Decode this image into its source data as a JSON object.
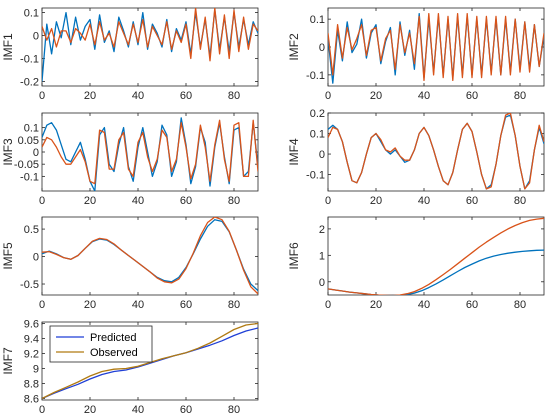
{
  "colors": {
    "predicted_imf": "#0072BD",
    "observed_imf": "#D95319",
    "predicted_last": "#1F3FD6",
    "observed_last": "#B07A12"
  },
  "chart_data": [
    {
      "type": "line",
      "ylabel": "IMF1",
      "xlim": [
        0,
        90
      ],
      "ylim": [
        -0.22,
        0.12
      ],
      "xticks": [
        0,
        20,
        40,
        60,
        80
      ],
      "yticks": [
        -0.2,
        -0.1,
        0,
        0.1
      ],
      "ytick_labels": [
        "-0.2",
        "-0.1",
        "0",
        "0.1"
      ],
      "x": [
        0,
        2,
        4,
        6,
        8,
        10,
        12,
        14,
        16,
        18,
        20,
        22,
        24,
        26,
        28,
        30,
        32,
        34,
        36,
        38,
        40,
        42,
        44,
        46,
        48,
        50,
        52,
        54,
        56,
        58,
        60,
        62,
        64,
        66,
        68,
        70,
        72,
        74,
        76,
        78,
        80,
        82,
        84,
        86,
        88,
        90
      ],
      "series": [
        {
          "name": "Predicted",
          "color": "#0072BD",
          "values": [
            -0.2,
            0.05,
            -0.08,
            0.06,
            -0.01,
            0.1,
            -0.04,
            0.08,
            -0.02,
            0.04,
            0.07,
            -0.06,
            0.09,
            -0.03,
            0.02,
            -0.07,
            0.08,
            0.02,
            -0.05,
            0.06,
            -0.04,
            0.1,
            -0.06,
            0.05,
            0.01,
            -0.05,
            0.07,
            -0.07,
            0.03,
            -0.02,
            0.06,
            -0.08,
            0.1,
            -0.05,
            0.07,
            -0.09,
            0.11,
            -0.06,
            0.08,
            -0.07,
            0.1,
            -0.05,
            0.07,
            -0.04,
            0.06,
            0.01
          ]
        },
        {
          "name": "Observed",
          "color": "#D95319",
          "values": [
            0.04,
            -0.02,
            0.03,
            -0.05,
            0.02,
            0.02,
            -0.03,
            0.03,
            0.01,
            -0.02,
            0.05,
            -0.04,
            0.06,
            -0.02,
            0.01,
            -0.05,
            0.06,
            0.01,
            -0.04,
            0.05,
            -0.03,
            0.07,
            -0.05,
            0.04,
            0,
            -0.04,
            0.06,
            -0.06,
            0.02,
            -0.03,
            0.05,
            -0.1,
            0.12,
            -0.06,
            0.08,
            -0.11,
            0.12,
            -0.08,
            0.09,
            -0.1,
            0.11,
            -0.07,
            0.08,
            -0.06,
            0.05,
            0.02
          ]
        }
      ]
    },
    {
      "type": "line",
      "ylabel": "IMF2",
      "xlim": [
        0,
        90
      ],
      "ylim": [
        -0.14,
        0.14
      ],
      "xticks": [
        0,
        20,
        40,
        60,
        80
      ],
      "yticks": [
        -0.1,
        0,
        0.1
      ],
      "ytick_labels": [
        "-0.1",
        "0",
        "0.1"
      ],
      "x": [
        0,
        2,
        4,
        6,
        8,
        10,
        12,
        14,
        16,
        18,
        20,
        22,
        24,
        26,
        28,
        30,
        32,
        34,
        36,
        38,
        40,
        42,
        44,
        46,
        48,
        50,
        52,
        54,
        56,
        58,
        60,
        62,
        64,
        66,
        68,
        70,
        72,
        74,
        76,
        78,
        80,
        82,
        84,
        86,
        88,
        90
      ],
      "series": [
        {
          "name": "Predicted",
          "color": "#0072BD",
          "values": [
            0.03,
            -0.13,
            0.06,
            -0.05,
            0.09,
            -0.02,
            0.01,
            0.1,
            -0.04,
            0.05,
            0.08,
            -0.06,
            0.02,
            0.07,
            -0.1,
            0.09,
            -0.03,
            0.06,
            -0.08,
            0.12,
            -0.11,
            0.1,
            -0.09,
            0.11,
            -0.1,
            0.1,
            -0.11,
            0.11,
            -0.1,
            0.11,
            -0.1,
            0.1,
            -0.1,
            0.1,
            -0.09,
            0.1,
            -0.1,
            0.1,
            -0.09,
            0.1,
            -0.08,
            0.09,
            -0.08,
            0.08,
            -0.07,
            0.04
          ]
        },
        {
          "name": "Observed",
          "color": "#D95319",
          "values": [
            0.05,
            -0.1,
            0.08,
            -0.04,
            0.07,
            -0.01,
            0.03,
            0.08,
            -0.03,
            0.06,
            0.07,
            -0.05,
            0.03,
            0.06,
            -0.08,
            0.08,
            -0.02,
            0.05,
            -0.06,
            0.11,
            -0.12,
            0.12,
            -0.1,
            0.12,
            -0.11,
            0.11,
            -0.12,
            0.12,
            -0.11,
            0.12,
            -0.11,
            0.11,
            -0.11,
            0.11,
            -0.1,
            0.11,
            -0.1,
            0.11,
            -0.1,
            0.1,
            -0.09,
            0.09,
            -0.09,
            0.08,
            -0.07,
            0.05
          ]
        }
      ]
    },
    {
      "type": "line",
      "ylabel": "IMF3",
      "xlim": [
        0,
        90
      ],
      "ylim": [
        -0.16,
        0.16
      ],
      "xticks": [
        0,
        20,
        40,
        60,
        80
      ],
      "yticks": [
        -0.1,
        -0.05,
        0,
        0.05,
        0.1
      ],
      "ytick_labels": [
        "-0.1",
        "-0.05",
        "0",
        "0.05",
        "0.1"
      ],
      "x": [
        0,
        2,
        4,
        6,
        8,
        10,
        12,
        14,
        16,
        18,
        20,
        22,
        24,
        26,
        28,
        30,
        32,
        34,
        36,
        38,
        40,
        42,
        44,
        46,
        48,
        50,
        52,
        54,
        56,
        58,
        60,
        62,
        64,
        66,
        68,
        70,
        72,
        74,
        76,
        78,
        80,
        82,
        84,
        86,
        88,
        90
      ],
      "series": [
        {
          "name": "Predicted",
          "color": "#0072BD",
          "values": [
            0.06,
            0.11,
            0.12,
            0.09,
            0.03,
            -0.03,
            -0.04,
            0,
            0.04,
            -0.03,
            -0.12,
            -0.16,
            0.07,
            0.1,
            -0.05,
            -0.08,
            0.03,
            0.1,
            -0.06,
            -0.12,
            0.02,
            0.1,
            0,
            -0.1,
            -0.04,
            0.11,
            0.07,
            -0.1,
            -0.04,
            0.14,
            0.03,
            -0.13,
            -0.06,
            0.1,
            0.04,
            -0.14,
            0.02,
            0.12,
            -0.02,
            -0.13,
            0.09,
            0.1,
            -0.1,
            -0.08,
            0.12,
            -0.06
          ]
        },
        {
          "name": "Observed",
          "color": "#D95319",
          "values": [
            0.02,
            0.06,
            0.05,
            0.02,
            -0.02,
            -0.05,
            -0.05,
            -0.02,
            0.01,
            -0.04,
            -0.12,
            -0.13,
            0.09,
            0.08,
            -0.07,
            -0.07,
            0.05,
            0.08,
            -0.07,
            -0.1,
            0.04,
            0.08,
            -0.02,
            -0.08,
            -0.03,
            0.09,
            0.06,
            -0.08,
            -0.03,
            0.12,
            0.02,
            -0.11,
            -0.05,
            0.11,
            0.02,
            -0.12,
            0.03,
            0.13,
            -0.03,
            -0.12,
            0.11,
            0.12,
            -0.1,
            -0.1,
            0.13,
            -0.08
          ]
        }
      ]
    },
    {
      "type": "line",
      "ylabel": "IMF4",
      "xlim": [
        0,
        90
      ],
      "ylim": [
        -0.18,
        0.2
      ],
      "xticks": [
        0,
        20,
        40,
        60,
        80
      ],
      "yticks": [
        -0.1,
        0,
        0.1,
        0.2
      ],
      "ytick_labels": [
        "-0.1",
        "0",
        "0.1",
        "0.2"
      ],
      "x": [
        0,
        2,
        4,
        6,
        8,
        10,
        12,
        14,
        16,
        18,
        20,
        22,
        24,
        26,
        28,
        30,
        32,
        34,
        36,
        38,
        40,
        42,
        44,
        46,
        48,
        50,
        52,
        54,
        56,
        58,
        60,
        62,
        64,
        66,
        68,
        70,
        72,
        74,
        76,
        78,
        80,
        82,
        84,
        86,
        88,
        90
      ],
      "series": [
        {
          "name": "Predicted",
          "color": "#0072BD",
          "values": [
            0.12,
            0.14,
            0.12,
            0.06,
            -0.04,
            -0.13,
            -0.14,
            -0.09,
            0,
            0.08,
            0.1,
            0.06,
            0.02,
            0,
            0.02,
            -0.01,
            -0.04,
            -0.03,
            0.02,
            0.1,
            0.13,
            0.09,
            0.02,
            -0.06,
            -0.13,
            -0.15,
            -0.09,
            0.02,
            0.12,
            0.15,
            0.11,
            0.01,
            -0.1,
            -0.17,
            -0.15,
            -0.05,
            0.09,
            0.18,
            0.19,
            0.09,
            -0.06,
            -0.17,
            -0.13,
            0.02,
            0.13,
            0.05
          ]
        },
        {
          "name": "Observed",
          "color": "#D95319",
          "values": [
            0.08,
            0.13,
            0.12,
            0.06,
            -0.04,
            -0.13,
            -0.14,
            -0.09,
            0,
            0.08,
            0.1,
            0.07,
            0.02,
            0.01,
            0.03,
            -0.01,
            -0.03,
            -0.03,
            0.02,
            0.1,
            0.13,
            0.09,
            0.02,
            -0.06,
            -0.13,
            -0.15,
            -0.09,
            0.02,
            0.12,
            0.15,
            0.11,
            0.01,
            -0.1,
            -0.17,
            -0.16,
            -0.05,
            0.09,
            0.19,
            0.2,
            0.09,
            -0.06,
            -0.17,
            -0.14,
            0.02,
            0.14,
            0.06
          ]
        }
      ]
    },
    {
      "type": "line",
      "ylabel": "IMF5",
      "xlim": [
        0,
        90
      ],
      "ylim": [
        -0.7,
        0.72
      ],
      "xticks": [
        0,
        20,
        40,
        60,
        80
      ],
      "yticks": [
        -0.5,
        0,
        0.5
      ],
      "ytick_labels": [
        "-0.5",
        "0",
        "0.5"
      ],
      "x": [
        0,
        3,
        6,
        9,
        12,
        15,
        18,
        21,
        24,
        27,
        30,
        33,
        36,
        39,
        42,
        45,
        48,
        51,
        54,
        57,
        60,
        63,
        66,
        69,
        72,
        75,
        78,
        81,
        84,
        87,
        90
      ],
      "series": [
        {
          "name": "Predicted",
          "color": "#0072BD",
          "values": [
            0.05,
            0.1,
            0.05,
            -0.02,
            -0.05,
            0.02,
            0.15,
            0.27,
            0.32,
            0.3,
            0.22,
            0.12,
            0.02,
            -0.08,
            -0.18,
            -0.28,
            -0.38,
            -0.44,
            -0.46,
            -0.38,
            -0.2,
            0.05,
            0.32,
            0.55,
            0.67,
            0.64,
            0.45,
            0.12,
            -0.23,
            -0.5,
            -0.62
          ]
        },
        {
          "name": "Observed",
          "color": "#D95319",
          "values": [
            0.08,
            0.09,
            0.04,
            -0.02,
            -0.05,
            0.02,
            0.15,
            0.28,
            0.33,
            0.31,
            0.23,
            0.12,
            0.02,
            -0.08,
            -0.18,
            -0.28,
            -0.39,
            -0.46,
            -0.48,
            -0.41,
            -0.22,
            0.06,
            0.38,
            0.62,
            0.72,
            0.67,
            0.46,
            0.12,
            -0.25,
            -0.55,
            -0.68
          ]
        }
      ]
    },
    {
      "type": "line",
      "ylabel": "IMF6",
      "xlim": [
        0,
        90
      ],
      "ylim": [
        -0.5,
        2.45
      ],
      "xticks": [
        0,
        20,
        40,
        60,
        80
      ],
      "yticks": [
        0,
        1,
        2
      ],
      "ytick_labels": [
        "0",
        "1",
        "2"
      ],
      "x": [
        0,
        3,
        6,
        9,
        12,
        15,
        18,
        21,
        24,
        27,
        30,
        33,
        36,
        39,
        42,
        45,
        48,
        51,
        54,
        57,
        60,
        63,
        66,
        69,
        72,
        75,
        78,
        81,
        84,
        87,
        90
      ],
      "series": [
        {
          "name": "Predicted",
          "color": "#0072BD",
          "values": [
            -0.27,
            -0.31,
            -0.35,
            -0.39,
            -0.42,
            -0.45,
            -0.48,
            -0.5,
            -0.51,
            -0.52,
            -0.51,
            -0.48,
            -0.43,
            -0.34,
            -0.22,
            -0.08,
            0.07,
            0.23,
            0.39,
            0.54,
            0.67,
            0.79,
            0.89,
            0.97,
            1.03,
            1.08,
            1.12,
            1.15,
            1.17,
            1.19,
            1.2
          ]
        },
        {
          "name": "Observed",
          "color": "#D95319",
          "values": [
            -0.27,
            -0.31,
            -0.35,
            -0.39,
            -0.42,
            -0.45,
            -0.48,
            -0.5,
            -0.51,
            -0.52,
            -0.5,
            -0.45,
            -0.37,
            -0.25,
            -0.1,
            0.08,
            0.27,
            0.47,
            0.68,
            0.89,
            1.1,
            1.31,
            1.5,
            1.68,
            1.85,
            2,
            2.13,
            2.24,
            2.32,
            2.37,
            2.4
          ]
        }
      ]
    },
    {
      "type": "line",
      "ylabel": "IMF7",
      "xlim": [
        0,
        90
      ],
      "ylim": [
        8.58,
        9.62
      ],
      "xticks": [
        0,
        20,
        40,
        60,
        80
      ],
      "yticks": [
        8.6,
        8.8,
        9,
        9.2,
        9.4,
        9.6
      ],
      "ytick_labels": [
        "8.6",
        "8.8",
        "9",
        "9.2",
        "9.4",
        "9.6"
      ],
      "legend": {
        "location": "top-left",
        "entries": [
          "Predicted",
          "Observed"
        ]
      },
      "x": [
        0,
        5,
        10,
        15,
        20,
        25,
        30,
        35,
        40,
        45,
        50,
        55,
        60,
        65,
        70,
        75,
        80,
        85,
        90
      ],
      "series": [
        {
          "name": "Predicted",
          "color": "#1F3FD6",
          "values": [
            8.6,
            8.67,
            8.73,
            8.79,
            8.86,
            8.92,
            8.96,
            8.98,
            9.02,
            9.07,
            9.12,
            9.17,
            9.21,
            9.26,
            9.31,
            9.37,
            9.44,
            9.5,
            9.54
          ]
        },
        {
          "name": "Observed",
          "color": "#B07A12",
          "values": [
            8.6,
            8.68,
            8.75,
            8.82,
            8.9,
            8.96,
            8.99,
            9,
            9.03,
            9.08,
            9.13,
            9.17,
            9.21,
            9.27,
            9.34,
            9.43,
            9.52,
            9.58,
            9.6
          ]
        }
      ]
    }
  ]
}
